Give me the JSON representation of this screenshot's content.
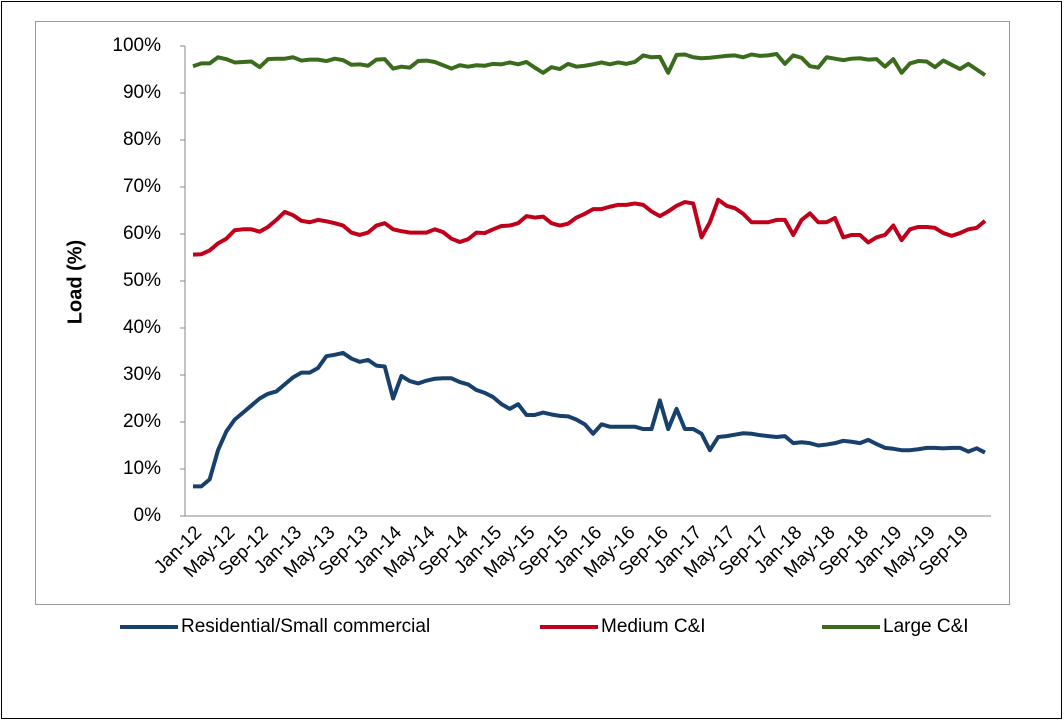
{
  "chart_data": {
    "type": "line",
    "y_label": "Load (%)",
    "categories": [
      "Jan-12",
      null,
      null,
      null,
      "May-12",
      null,
      null,
      null,
      "Sep-12",
      null,
      null,
      null,
      "Jan-13",
      null,
      null,
      null,
      "May-13",
      null,
      null,
      null,
      "Sep-13",
      null,
      null,
      null,
      "Jan-14",
      null,
      null,
      null,
      "May-14",
      null,
      null,
      null,
      "Sep-14",
      null,
      null,
      null,
      "Jan-15",
      null,
      null,
      null,
      "May-15",
      null,
      null,
      null,
      "Sep-15",
      null,
      null,
      null,
      "Jan-16",
      null,
      null,
      null,
      "May-16",
      null,
      null,
      null,
      "Sep-16",
      null,
      null,
      null,
      "Jan-17",
      null,
      null,
      null,
      "May-17",
      null,
      null,
      null,
      "Sep-17",
      null,
      null,
      null,
      "Jan-18",
      null,
      null,
      null,
      "May-18",
      null,
      null,
      null,
      "Sep-18",
      null,
      null,
      null,
      "Jan-19",
      null,
      null,
      null,
      "May-19",
      null,
      null,
      null,
      "Sep-19",
      null,
      null,
      null
    ],
    "series": [
      {
        "name": "Residential/Small commercial",
        "color": "#17406d",
        "values": [
          6.3,
          6.3,
          7.8,
          14,
          18,
          20.5,
          22,
          23.5,
          25,
          26,
          26.5,
          28,
          29.5,
          30.5,
          30.5,
          31.5,
          34,
          34.3,
          34.7,
          33.5,
          32.8,
          33.2,
          32,
          31.8,
          25,
          29.8,
          28.7,
          28.2,
          28.8,
          29.2,
          29.3,
          29.3,
          28.5,
          28,
          26.8,
          26.2,
          25.3,
          23.8,
          22.8,
          23.8,
          21.5,
          21.5,
          22,
          21.6,
          21.3,
          21.2,
          20.5,
          19.5,
          17.5,
          19.5,
          19,
          19,
          19,
          19,
          18.5,
          18.5,
          24.6,
          18.5,
          22.8,
          18.5,
          18.5,
          17.5,
          14,
          16.8,
          17,
          17.3,
          17.6,
          17.5,
          17.2,
          17,
          16.8,
          17,
          15.5,
          15.7,
          15.5,
          15,
          15.2,
          15.5,
          16,
          15.8,
          15.5,
          16.2,
          15.3,
          14.5,
          14.3,
          14,
          14,
          14.2,
          14.5,
          14.5,
          14.4,
          14.5,
          14.5,
          13.7,
          14.4,
          13.5
        ]
      },
      {
        "name": "Medium C&I",
        "color": "#c0001a",
        "values": [
          55.6,
          55.7,
          56.5,
          58,
          59,
          60.8,
          61,
          61,
          60.5,
          61.5,
          63,
          64.7,
          64,
          62.8,
          62.5,
          63,
          62.7,
          62.3,
          61.8,
          60.3,
          59.8,
          60.3,
          61.8,
          62.3,
          61,
          60.6,
          60.3,
          60.3,
          60.3,
          61,
          60.4,
          59,
          58.3,
          58.9,
          60.3,
          60.2,
          61,
          61.7,
          61.8,
          62.3,
          63.8,
          63.5,
          63.7,
          62.3,
          61.8,
          62.2,
          63.5,
          64.3,
          65.3,
          65.3,
          65.8,
          66.2,
          66.2,
          66.5,
          66.2,
          64.8,
          63.8,
          64.8,
          66,
          66.8,
          66.5,
          59.3,
          62.5,
          67.3,
          66,
          65.5,
          64.3,
          62.5,
          62.5,
          62.5,
          63,
          63,
          59.8,
          63,
          64.4,
          62.5,
          62.5,
          63.4,
          59.3,
          59.8,
          59.8,
          58.2,
          59.3,
          59.8,
          61.8,
          58.7,
          61,
          61.5,
          61.5,
          61.3,
          60.2,
          59.6,
          60.2,
          61,
          61.3,
          62.8
        ]
      },
      {
        "name": "Large C&I",
        "color": "#3b6b1d",
        "values": [
          95.7,
          96.3,
          96.3,
          97.6,
          97.2,
          96.5,
          96.6,
          96.7,
          95.5,
          97.2,
          97.3,
          97.3,
          97.6,
          96.9,
          97.1,
          97.1,
          96.8,
          97.3,
          97,
          96,
          96.1,
          95.8,
          97.1,
          97.2,
          95.2,
          95.6,
          95.4,
          96.8,
          96.9,
          96.6,
          95.9,
          95.2,
          95.9,
          95.6,
          95.9,
          95.8,
          96.2,
          96.1,
          96.5,
          96.1,
          96.6,
          95.4,
          94.3,
          95.5,
          95.1,
          96.2,
          95.6,
          95.8,
          96.1,
          96.5,
          96.1,
          96.5,
          96.2,
          96.6,
          98,
          97.6,
          97.7,
          94.3,
          98.1,
          98.2,
          97.6,
          97.4,
          97.5,
          97.7,
          97.9,
          98,
          97.6,
          98.2,
          97.9,
          98,
          98.3,
          96.2,
          98,
          97.5,
          95.7,
          95.4,
          97.6,
          97.3,
          97,
          97.3,
          97.4,
          97.1,
          97.2,
          95.6,
          97.2,
          94.3,
          96.3,
          96.8,
          96.7,
          95.5,
          96.9,
          96,
          95.1,
          96.2,
          95,
          93.8
        ]
      }
    ],
    "ylim": [
      0,
      100
    ],
    "yticks": [
      {
        "value": 0,
        "label": "0%"
      },
      {
        "value": 10,
        "label": "10%"
      },
      {
        "value": 20,
        "label": "20%"
      },
      {
        "value": 30,
        "label": "30%"
      },
      {
        "value": 40,
        "label": "40%"
      },
      {
        "value": 50,
        "label": "50%"
      },
      {
        "value": 60,
        "label": "60%"
      },
      {
        "value": 70,
        "label": "70%"
      },
      {
        "value": 80,
        "label": "80%"
      },
      {
        "value": 90,
        "label": "90%"
      },
      {
        "value": 100,
        "label": "100%"
      }
    ],
    "grid": false,
    "legend": "bottom"
  }
}
